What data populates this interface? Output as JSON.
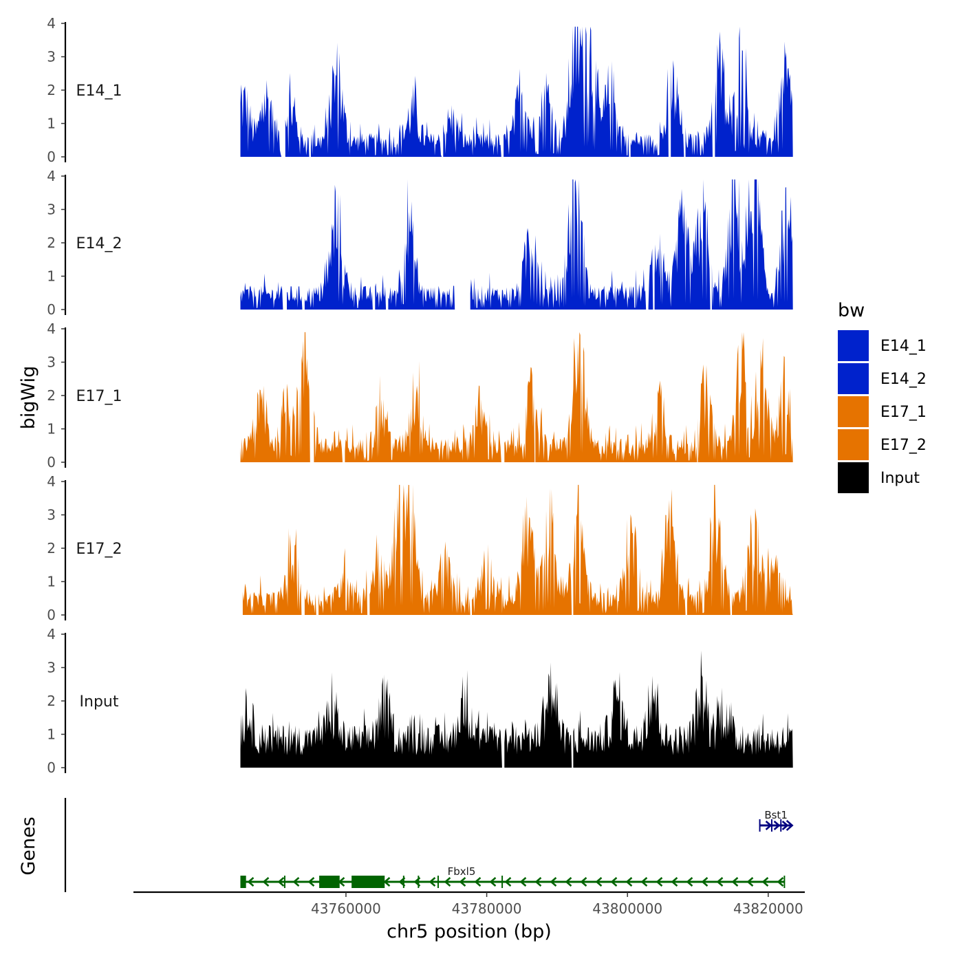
{
  "chart_data": {
    "type": "area",
    "subtype": "genome-coverage-tracks",
    "ylabel": "bigWig",
    "xlabel": "chr5 position (bp)",
    "genes_label": "Genes",
    "xlim": [
      43730000,
      43825000
    ],
    "data_range": [
      43745000,
      43823500
    ],
    "x_ticks": [
      43760000,
      43780000,
      43800000,
      43820000
    ],
    "x_tick_labels": [
      "43760000",
      "43780000",
      "43800000",
      "43820000"
    ],
    "ylim": [
      0,
      4
    ],
    "y_ticks": [
      0,
      1,
      2,
      3,
      4
    ],
    "y_tick_labels": [
      "0",
      "1",
      "2",
      "3",
      "4"
    ],
    "legend": {
      "title": "bw",
      "entries": [
        {
          "label": "E14_1",
          "color": "#0022cc"
        },
        {
          "label": "E14_2",
          "color": "#0022cc"
        },
        {
          "label": "E17_1",
          "color": "#e67300"
        },
        {
          "label": "E17_2",
          "color": "#e67300"
        },
        {
          "label": "Input",
          "color": "#000000"
        }
      ]
    },
    "series": [
      {
        "name": "E14_1",
        "color": "#0022cc",
        "peaks": [
          [
            43745500,
            1.6
          ],
          [
            43748700,
            1.7
          ],
          [
            43752000,
            1.5
          ],
          [
            43758700,
            2.3
          ],
          [
            43769500,
            1.4
          ],
          [
            43775000,
            1.1
          ],
          [
            43785000,
            1.9
          ],
          [
            43788500,
            1.8
          ],
          [
            43792600,
            3.5
          ],
          [
            43794600,
            3.3
          ],
          [
            43797600,
            1.9
          ],
          [
            43806500,
            2.0
          ],
          [
            43813000,
            2.6
          ],
          [
            43816200,
            2.8
          ],
          [
            43822500,
            2.2
          ]
        ],
        "gaps": [
          [
            43750800,
            43751300
          ],
          [
            43754700,
            43754900
          ],
          [
            43773600,
            43773800
          ],
          [
            43782000,
            43782300
          ],
          [
            43800200,
            43800400
          ],
          [
            43805800,
            43806100
          ],
          [
            43808000,
            43808200
          ],
          [
            43812100,
            43812400
          ]
        ]
      },
      {
        "name": "E14_2",
        "color": "#0022cc",
        "peaks": [
          [
            43758600,
            2.4
          ],
          [
            43768900,
            2.3
          ],
          [
            43786300,
            2.2
          ],
          [
            43792600,
            3.6
          ],
          [
            43804300,
            1.9
          ],
          [
            43807800,
            2.3
          ],
          [
            43810600,
            2.7
          ],
          [
            43815200,
            3.0
          ],
          [
            43818000,
            3.8
          ],
          [
            43822600,
            2.4
          ]
        ],
        "gaps": [
          [
            43751000,
            43751500
          ],
          [
            43753800,
            43754100
          ],
          [
            43763800,
            43764100
          ],
          [
            43765600,
            43765900
          ],
          [
            43775400,
            43777600
          ],
          [
            43802600,
            43802900
          ],
          [
            43803600,
            43803800
          ],
          [
            43811700,
            43811900
          ]
        ]
      },
      {
        "name": "E17_1",
        "color": "#e67300",
        "peaks": [
          [
            43748000,
            1.6
          ],
          [
            43751800,
            1.9
          ],
          [
            43754400,
            3.2
          ],
          [
            43765000,
            1.5
          ],
          [
            43770000,
            2.2
          ],
          [
            43779000,
            1.5
          ],
          [
            43786500,
            1.9
          ],
          [
            43793100,
            3.0
          ],
          [
            43804600,
            1.8
          ],
          [
            43811000,
            1.9
          ],
          [
            43816200,
            2.7
          ],
          [
            43819000,
            2.4
          ],
          [
            43822400,
            2.1
          ]
        ],
        "gaps": [
          [
            43754900,
            43755400
          ],
          [
            43759500,
            43759800
          ],
          [
            43782000,
            43782400
          ],
          [
            43786800,
            43786900
          ],
          [
            43809800,
            43810000
          ]
        ]
      },
      {
        "name": "E17_2",
        "color": "#e67300",
        "peaks": [
          [
            43752500,
            1.8
          ],
          [
            43760000,
            1.3
          ],
          [
            43764500,
            1.6
          ],
          [
            43767500,
            2.5
          ],
          [
            43769000,
            2.9
          ],
          [
            43774000,
            1.5
          ],
          [
            43780000,
            1.5
          ],
          [
            43785800,
            2.5
          ],
          [
            43789000,
            2.5
          ],
          [
            43793000,
            2.9
          ],
          [
            43800500,
            2.3
          ],
          [
            43806000,
            2.7
          ],
          [
            43812500,
            2.8
          ],
          [
            43818000,
            2.3
          ],
          [
            43821000,
            1.8
          ]
        ],
        "gaps": [
          [
            43745000,
            43745300
          ],
          [
            43753600,
            43754100
          ],
          [
            43755700,
            43756000
          ],
          [
            43763000,
            43763300
          ],
          [
            43777600,
            43777800
          ],
          [
            43792000,
            43792200
          ],
          [
            43808200,
            43808400
          ],
          [
            43814600,
            43814800
          ]
        ]
      },
      {
        "name": "Input",
        "color": "#000000",
        "peaks": [
          [
            43746000,
            1.9
          ],
          [
            43758000,
            2.0
          ],
          [
            43765500,
            2.3
          ],
          [
            43777000,
            2.5
          ],
          [
            43789000,
            2.9
          ],
          [
            43798500,
            2.5
          ],
          [
            43803500,
            2.9
          ],
          [
            43810500,
            2.5
          ],
          [
            43813600,
            2.2
          ]
        ],
        "gaps": [
          [
            43782100,
            43782400
          ],
          [
            43792000,
            43792200
          ]
        ]
      }
    ],
    "genes": [
      {
        "name": "Fbxl5",
        "start": 43745000,
        "end": 43822300,
        "strand": "-",
        "color": "#006400",
        "exons": [
          [
            43745000,
            43745800
          ],
          [
            43756200,
            43759100
          ],
          [
            43760800,
            43765500
          ]
        ],
        "markers": [
          43751300,
          43761000,
          43768200,
          43770300,
          43773100,
          43782200,
          43822300
        ]
      },
      {
        "name": "Bst1",
        "start": 43818800,
        "end": 43823400,
        "strand": "+",
        "color": "#000080",
        "exons": [],
        "markers": [
          43818800,
          43820500,
          43821800
        ]
      }
    ]
  }
}
